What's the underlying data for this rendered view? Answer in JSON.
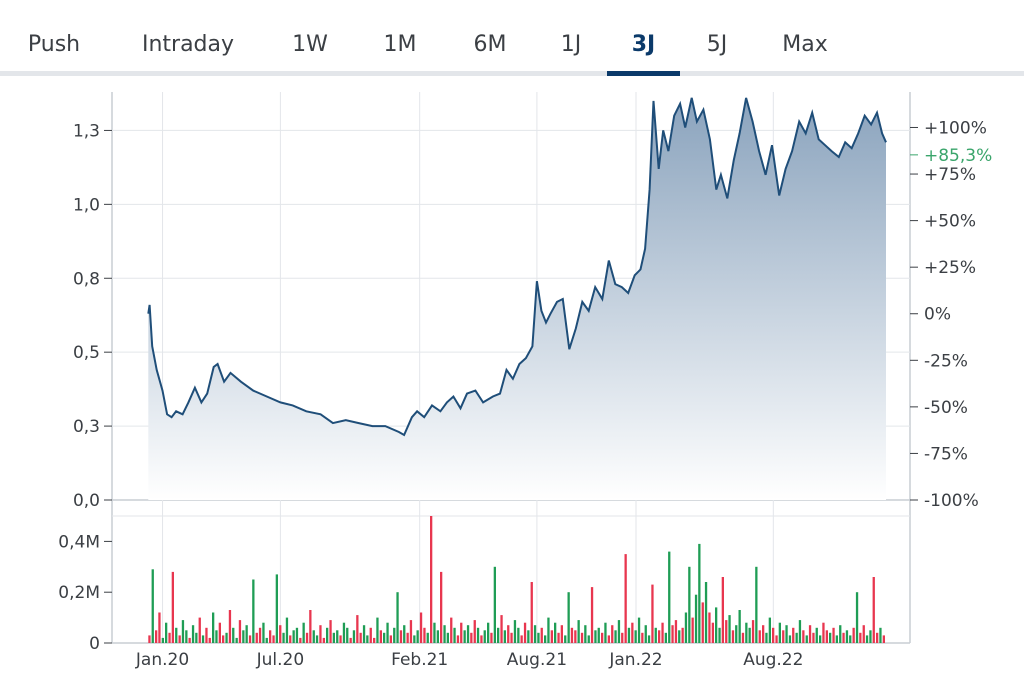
{
  "tabs": [
    {
      "label": "Push",
      "active": false
    },
    {
      "label": "Intraday",
      "active": false
    },
    {
      "label": "1W",
      "active": false
    },
    {
      "label": "1M",
      "active": false
    },
    {
      "label": "6M",
      "active": false
    },
    {
      "label": "1J",
      "active": false
    },
    {
      "label": "3J",
      "active": true
    },
    {
      "label": "5J",
      "active": false
    },
    {
      "label": "Max",
      "active": false
    }
  ],
  "colors": {
    "line": "#1f4e79",
    "fill_top": "#8aa3bd",
    "fill_bottom": "#ffffff",
    "grid": "#e3e6ea",
    "up": "#1f9d55",
    "down": "#e8364f",
    "current": "#3aa56b",
    "active_tab": "#0b3a6a"
  },
  "chart_data": [
    {
      "type": "area",
      "y_ticks": [
        "1,3",
        "1,0",
        "0,8",
        "0,5",
        "0,3",
        "0,0"
      ],
      "y_tick_values": [
        1.25,
        1.0,
        0.75,
        0.5,
        0.25,
        0.0
      ],
      "ylim": [
        0,
        1.38
      ],
      "y2_ticks": [
        "+100%",
        "+75%",
        "+50%",
        "+25%",
        "0%",
        "-25%",
        "-50%",
        "-75%",
        "-100%"
      ],
      "y2_tick_values": [
        100,
        75,
        50,
        25,
        0,
        -25,
        -50,
        -75,
        -100
      ],
      "current_change": "+85,3%",
      "current_change_value": 85.3,
      "x_ticks": [
        "Jan.20",
        "Jul.20",
        "Feb.21",
        "Aug.21",
        "Jan.22",
        "Aug.22"
      ],
      "x_tick_dates": [
        "2020-01-01",
        "2020-07-01",
        "2021-02-01",
        "2021-08-01",
        "2022-01-01",
        "2022-08-01"
      ],
      "x_range": [
        "2019-10-15",
        "2023-02-28"
      ],
      "series": [
        {
          "points": [
            [
              "2019-12-10",
              0.63
            ],
            [
              "2019-12-12",
              0.66
            ],
            [
              "2019-12-16",
              0.52
            ],
            [
              "2019-12-23",
              0.44
            ],
            [
              "2020-01-01",
              0.37
            ],
            [
              "2020-01-08",
              0.29
            ],
            [
              "2020-01-15",
              0.28
            ],
            [
              "2020-01-22",
              0.3
            ],
            [
              "2020-02-01",
              0.29
            ],
            [
              "2020-02-10",
              0.33
            ],
            [
              "2020-02-20",
              0.38
            ],
            [
              "2020-03-01",
              0.33
            ],
            [
              "2020-03-10",
              0.36
            ],
            [
              "2020-03-20",
              0.45
            ],
            [
              "2020-03-26",
              0.46
            ],
            [
              "2020-04-05",
              0.4
            ],
            [
              "2020-04-15",
              0.43
            ],
            [
              "2020-05-01",
              0.4
            ],
            [
              "2020-05-20",
              0.37
            ],
            [
              "2020-06-10",
              0.35
            ],
            [
              "2020-07-01",
              0.33
            ],
            [
              "2020-07-20",
              0.32
            ],
            [
              "2020-08-10",
              0.3
            ],
            [
              "2020-09-01",
              0.29
            ],
            [
              "2020-09-20",
              0.26
            ],
            [
              "2020-10-10",
              0.27
            ],
            [
              "2020-10-30",
              0.26
            ],
            [
              "2020-11-20",
              0.25
            ],
            [
              "2020-12-10",
              0.25
            ],
            [
              "2020-12-31",
              0.23
            ],
            [
              "2021-01-08",
              0.22
            ],
            [
              "2021-01-20",
              0.28
            ],
            [
              "2021-01-28",
              0.3
            ],
            [
              "2021-02-08",
              0.28
            ],
            [
              "2021-02-20",
              0.32
            ],
            [
              "2021-03-05",
              0.3
            ],
            [
              "2021-03-15",
              0.33
            ],
            [
              "2021-03-25",
              0.35
            ],
            [
              "2021-04-05",
              0.31
            ],
            [
              "2021-04-15",
              0.36
            ],
            [
              "2021-04-28",
              0.37
            ],
            [
              "2021-05-10",
              0.33
            ],
            [
              "2021-05-25",
              0.35
            ],
            [
              "2021-06-05",
              0.36
            ],
            [
              "2021-06-15",
              0.44
            ],
            [
              "2021-06-25",
              0.41
            ],
            [
              "2021-07-05",
              0.46
            ],
            [
              "2021-07-15",
              0.48
            ],
            [
              "2021-07-25",
              0.52
            ],
            [
              "2021-08-01",
              0.74
            ],
            [
              "2021-08-08",
              0.64
            ],
            [
              "2021-08-15",
              0.6
            ],
            [
              "2021-08-22",
              0.63
            ],
            [
              "2021-09-01",
              0.67
            ],
            [
              "2021-09-10",
              0.68
            ],
            [
              "2021-09-20",
              0.51
            ],
            [
              "2021-09-30",
              0.58
            ],
            [
              "2021-10-10",
              0.67
            ],
            [
              "2021-10-20",
              0.64
            ],
            [
              "2021-10-30",
              0.72
            ],
            [
              "2021-11-10",
              0.68
            ],
            [
              "2021-11-20",
              0.81
            ],
            [
              "2021-11-30",
              0.73
            ],
            [
              "2021-12-10",
              0.72
            ],
            [
              "2021-12-20",
              0.7
            ],
            [
              "2021-12-30",
              0.76
            ],
            [
              "2022-01-08",
              0.78
            ],
            [
              "2022-01-15",
              0.85
            ],
            [
              "2022-01-22",
              1.05
            ],
            [
              "2022-01-28",
              1.35
            ],
            [
              "2022-02-05",
              1.12
            ],
            [
              "2022-02-12",
              1.25
            ],
            [
              "2022-02-20",
              1.18
            ],
            [
              "2022-03-01",
              1.3
            ],
            [
              "2022-03-10",
              1.34
            ],
            [
              "2022-03-18",
              1.26
            ],
            [
              "2022-03-28",
              1.36
            ],
            [
              "2022-04-05",
              1.28
            ],
            [
              "2022-04-15",
              1.32
            ],
            [
              "2022-04-25",
              1.22
            ],
            [
              "2022-05-05",
              1.05
            ],
            [
              "2022-05-12",
              1.1
            ],
            [
              "2022-05-22",
              1.02
            ],
            [
              "2022-06-01",
              1.15
            ],
            [
              "2022-06-10",
              1.24
            ],
            [
              "2022-06-20",
              1.36
            ],
            [
              "2022-06-30",
              1.28
            ],
            [
              "2022-07-10",
              1.18
            ],
            [
              "2022-07-20",
              1.1
            ],
            [
              "2022-07-30",
              1.2
            ],
            [
              "2022-08-10",
              1.03
            ],
            [
              "2022-08-20",
              1.12
            ],
            [
              "2022-08-30",
              1.18
            ],
            [
              "2022-09-10",
              1.28
            ],
            [
              "2022-09-20",
              1.24
            ],
            [
              "2022-09-30",
              1.31
            ],
            [
              "2022-10-10",
              1.22
            ],
            [
              "2022-10-20",
              1.2
            ],
            [
              "2022-10-30",
              1.18
            ],
            [
              "2022-11-10",
              1.16
            ],
            [
              "2022-11-20",
              1.21
            ],
            [
              "2022-11-30",
              1.19
            ],
            [
              "2022-12-10",
              1.24
            ],
            [
              "2022-12-20",
              1.3
            ],
            [
              "2022-12-30",
              1.27
            ],
            [
              "2023-01-08",
              1.31
            ],
            [
              "2023-01-16",
              1.24
            ],
            [
              "2023-01-22",
              1.21
            ]
          ]
        }
      ]
    },
    {
      "type": "bar",
      "y_ticks": [
        "0,4M",
        "0,2M",
        "0"
      ],
      "y_tick_values": [
        0.4,
        0.2,
        0.0
      ],
      "ylim": [
        0,
        0.5
      ],
      "x_ticks": [
        "Jan.20",
        "Jul.20",
        "Feb.21",
        "Aug.21",
        "Jan.22",
        "Aug.22"
      ],
      "series": [
        {
          "values_m": [
            0.03,
            0.29,
            0.05,
            0.12,
            0.02,
            0.08,
            0.04,
            0.28,
            0.06,
            0.03,
            0.09,
            0.05,
            0.02,
            0.07,
            0.04,
            0.1,
            0.03,
            0.06,
            0.02,
            0.12,
            0.05,
            0.08,
            0.03,
            0.04,
            0.13,
            0.06,
            0.02,
            0.09,
            0.05,
            0.07,
            0.03,
            0.25,
            0.04,
            0.06,
            0.08,
            0.02,
            0.05,
            0.03,
            0.27,
            0.07,
            0.04,
            0.1,
            0.03,
            0.05,
            0.06,
            0.02,
            0.08,
            0.04,
            0.13,
            0.05,
            0.03,
            0.07,
            0.02,
            0.06,
            0.09,
            0.04,
            0.05,
            0.03,
            0.08,
            0.06,
            0.02,
            0.05,
            0.11,
            0.04,
            0.07,
            0.03,
            0.06,
            0.02,
            0.1,
            0.05,
            0.04,
            0.08,
            0.03,
            0.06,
            0.2,
            0.05,
            0.07,
            0.04,
            0.09,
            0.03,
            0.05,
            0.12,
            0.06,
            0.04,
            0.5,
            0.08,
            0.05,
            0.28,
            0.07,
            0.04,
            0.1,
            0.06,
            0.03,
            0.08,
            0.05,
            0.07,
            0.04,
            0.09,
            0.06,
            0.03,
            0.05,
            0.08,
            0.04,
            0.3,
            0.06,
            0.11,
            0.05,
            0.07,
            0.04,
            0.09,
            0.06,
            0.03,
            0.08,
            0.05,
            0.24,
            0.07,
            0.04,
            0.06,
            0.03,
            0.1,
            0.05,
            0.08,
            0.04,
            0.07,
            0.03,
            0.2,
            0.06,
            0.05,
            0.09,
            0.04,
            0.07,
            0.03,
            0.22,
            0.05,
            0.06,
            0.04,
            0.08,
            0.03,
            0.07,
            0.05,
            0.09,
            0.04,
            0.35,
            0.06,
            0.08,
            0.05,
            0.1,
            0.04,
            0.07,
            0.03,
            0.23,
            0.06,
            0.05,
            0.08,
            0.04,
            0.36,
            0.07,
            0.09,
            0.05,
            0.06,
            0.12,
            0.3,
            0.1,
            0.19,
            0.39,
            0.16,
            0.24,
            0.12,
            0.08,
            0.14,
            0.06,
            0.26,
            0.09,
            0.11,
            0.05,
            0.07,
            0.13,
            0.04,
            0.08,
            0.06,
            0.09,
            0.3,
            0.05,
            0.07,
            0.04,
            0.1,
            0.06,
            0.03,
            0.08,
            0.05,
            0.07,
            0.03,
            0.06,
            0.04,
            0.09,
            0.05,
            0.03,
            0.07,
            0.04,
            0.06,
            0.03,
            0.08,
            0.05,
            0.04,
            0.06,
            0.03,
            0.07,
            0.04,
            0.05,
            0.03,
            0.06,
            0.2,
            0.04,
            0.07,
            0.03,
            0.05,
            0.26,
            0.04,
            0.06,
            0.03
          ]
        }
      ]
    }
  ]
}
